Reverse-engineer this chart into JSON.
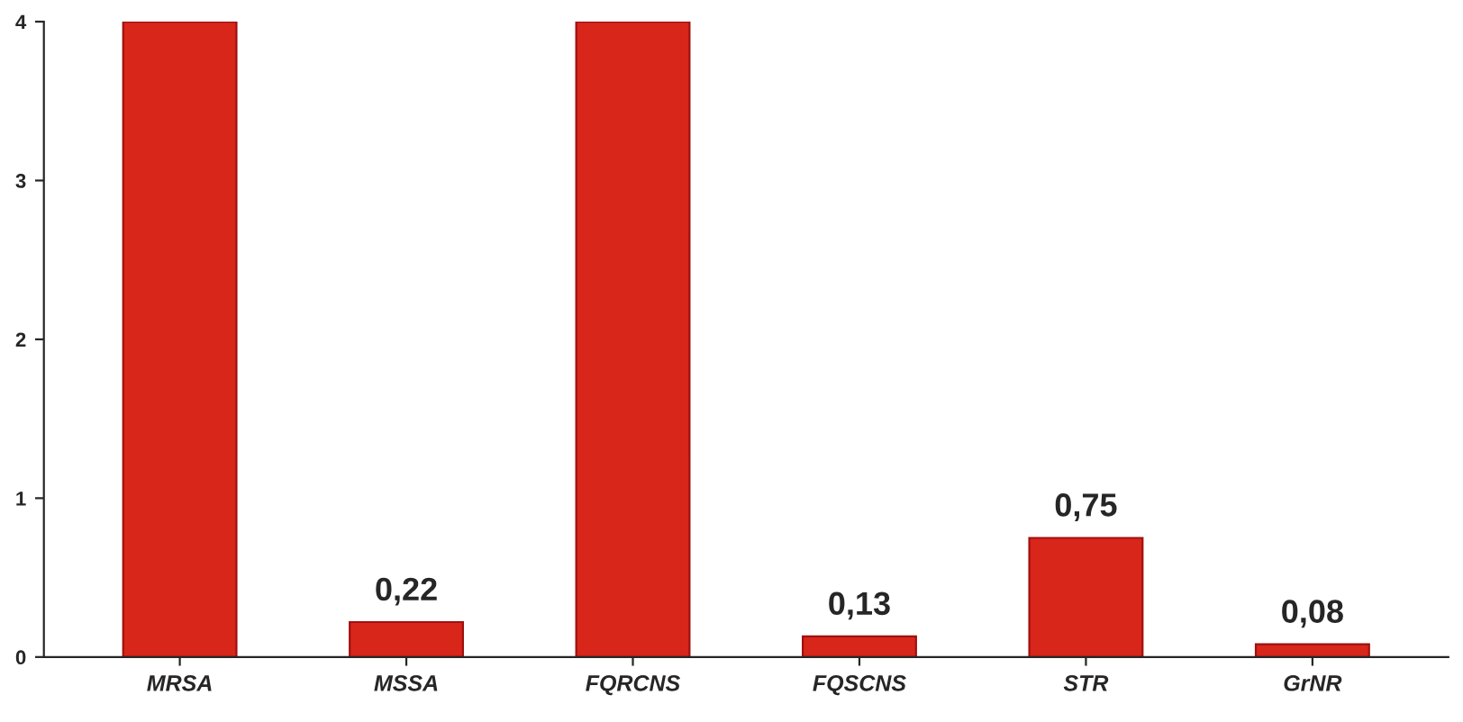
{
  "chart_data": {
    "type": "bar",
    "categories": [
      "MRSA",
      "MSSA",
      "FQRCNS",
      "FQSCNS",
      "STR",
      "GrNR"
    ],
    "values": [
      4,
      0.22,
      4,
      0.13,
      0.75,
      0.08
    ],
    "value_labels": [
      null,
      "0,22",
      null,
      "0,13",
      "0,75",
      "0,08"
    ],
    "color": "#d8261a",
    "ylim": [
      0,
      4
    ],
    "yticks": [
      0,
      1,
      2,
      3,
      4
    ],
    "grid": false
  }
}
